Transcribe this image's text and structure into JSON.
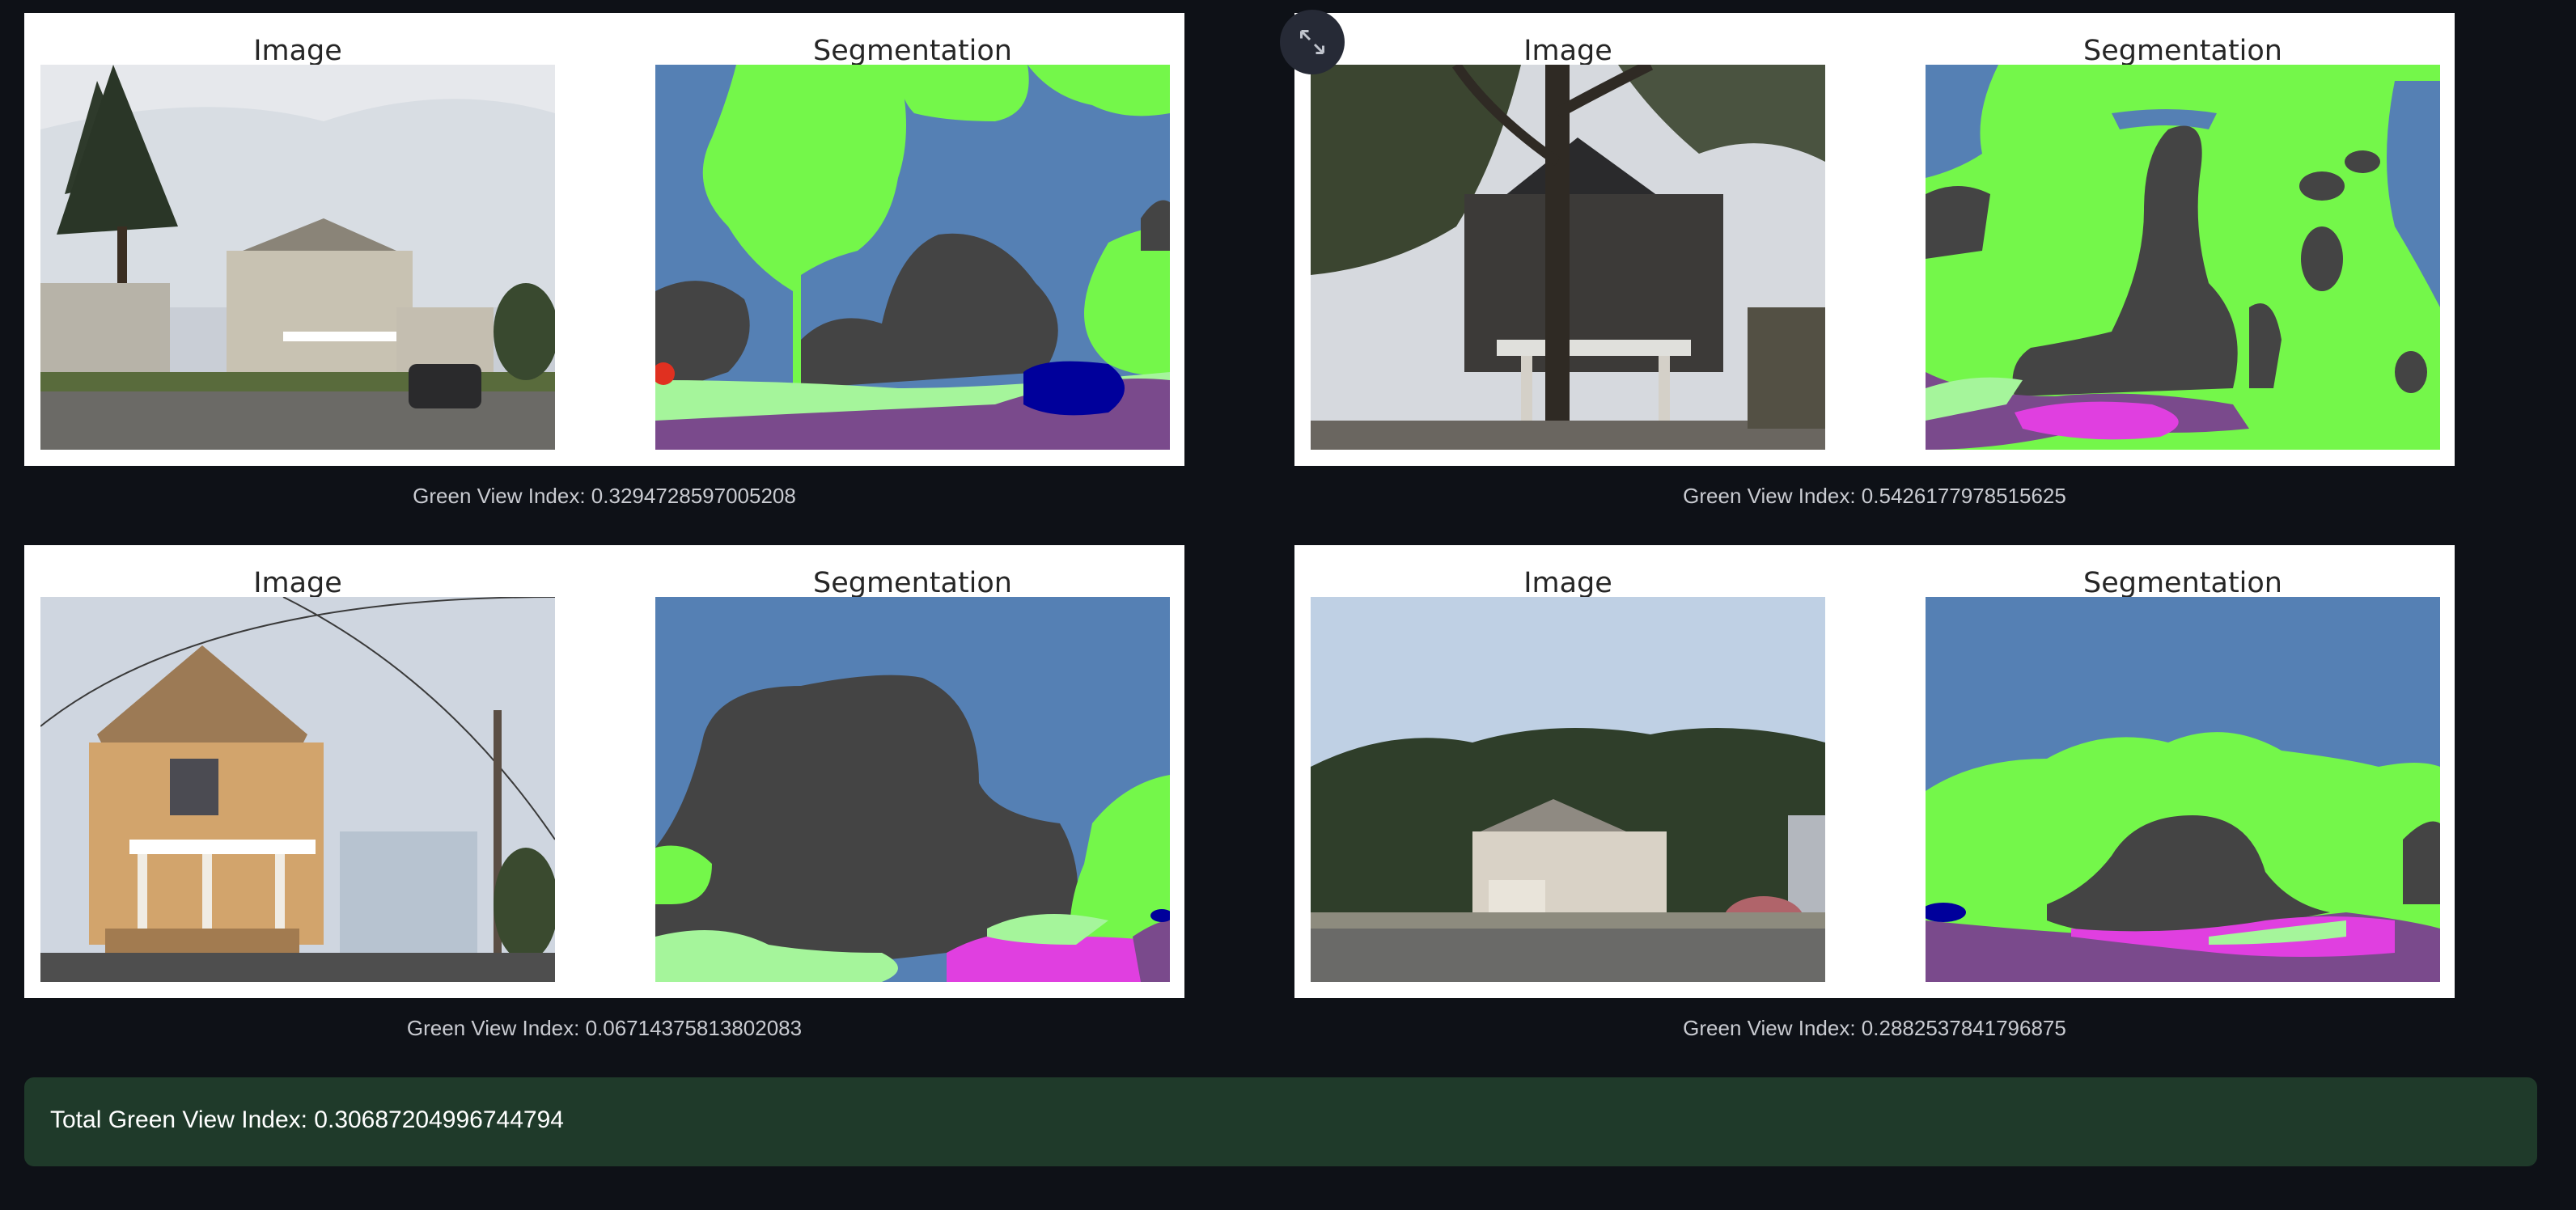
{
  "results": [
    {
      "image_title": "Image",
      "segmentation_title": "Segmentation",
      "caption": "Green View Index: 0.3294728597005208"
    },
    {
      "image_title": "Image",
      "segmentation_title": "Segmentation",
      "caption": "Green View Index: 0.5426177978515625"
    },
    {
      "image_title": "Image",
      "segmentation_title": "Segmentation",
      "caption": "Green View Index: 0.06714375813802083"
    },
    {
      "image_title": "Image",
      "segmentation_title": "Segmentation",
      "caption": "Green View Index: 0.2882537841796875"
    }
  ],
  "total": {
    "text": "Total Green View Index: 0.30687204996744794"
  },
  "toolbar": {
    "expand_icon": "expand-icon"
  },
  "colors": {
    "page_bg": "#0e1117",
    "sky": "#5580b4",
    "vegetation": "#74f74a",
    "building": "#444444",
    "road": "#7a4a8c",
    "sidewalk": "#a5f59b",
    "car": "#00009b",
    "person": "#e0e040",
    "total_box_bg": "#1f3a2a"
  }
}
